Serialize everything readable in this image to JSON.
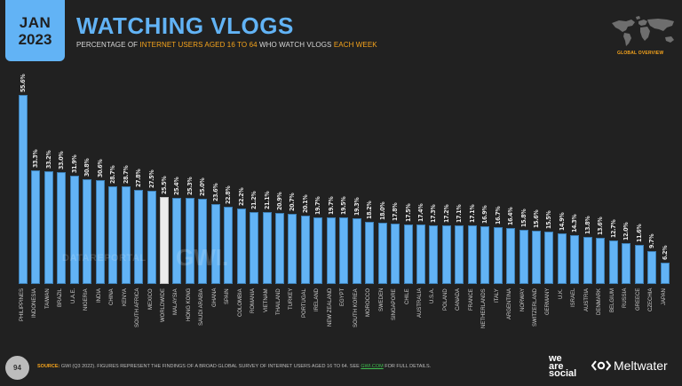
{
  "header": {
    "month": "JAN",
    "year": "2023",
    "title": "WATCHING VLOGS",
    "subtitle_parts": [
      "PERCENTAGE OF ",
      "INTERNET USERS AGED 16 TO 64",
      " WHO WATCH VLOGS ",
      "EACH WEEK"
    ],
    "section_label": "GLOBAL OVERVIEW"
  },
  "colors": {
    "background": "#212121",
    "bar": "#62b3f5",
    "bar_worldwide": "#ececec",
    "accent": "#f6a41c",
    "title": "#62b3f5"
  },
  "watermarks": {
    "datareportal": "DATAREPORTAL",
    "gwi": "GWI."
  },
  "footer": {
    "page_number": "94",
    "source_label": "SOURCE:",
    "source_text": " GWI (Q3 2022). FIGURES REPRESENT THE FINDINGS OF A BROAD GLOBAL SURVEY OF INTERNET USERS AGED 16 TO 64. SEE ",
    "source_link": "GWI.COM",
    "source_tail": " FOR FULL DETAILS.",
    "logo_was": [
      "we",
      "are",
      "social"
    ],
    "logo_meltwater": "Meltwater"
  },
  "chart_data": {
    "type": "bar",
    "title": "WATCHING VLOGS",
    "subtitle": "PERCENTAGE OF INTERNET USERS AGED 16 TO 64 WHO WATCH VLOGS EACH WEEK",
    "xlabel": "",
    "ylabel": "",
    "grid": false,
    "legend": false,
    "ylim": [
      0,
      56
    ],
    "highlight": "WORLDWIDE",
    "categories": [
      "PHILIPPINES",
      "INDONESIA",
      "TAIWAN",
      "BRAZIL",
      "U.A.E.",
      "NIGERIA",
      "INDIA",
      "CHINA",
      "KENYA",
      "SOUTH AFRICA",
      "MEXICO",
      "WORLDWIDE",
      "MALAYSIA",
      "HONG KONG",
      "SAUDI ARABIA",
      "GHANA",
      "SPAIN",
      "COLOMBIA",
      "ROMANIA",
      "VIETNAM",
      "THAILAND",
      "TURKEY",
      "PORTUGAL",
      "IRELAND",
      "NEW ZEALAND",
      "EGYPT",
      "SOUTH KOREA",
      "MOROCCO",
      "SWEDEN",
      "SINGAPORE",
      "CHILE",
      "AUSTRALIA",
      "U.S.A.",
      "POLAND",
      "CANADA",
      "FRANCE",
      "NETHERLANDS",
      "ITALY",
      "ARGENTINA",
      "NORWAY",
      "SWITZERLAND",
      "GERMANY",
      "U.K.",
      "ISRAEL",
      "AUSTRIA",
      "DENMARK",
      "BELGIUM",
      "RUSSIA",
      "GREECE",
      "CZECHIA",
      "JAPAN"
    ],
    "values": [
      55.6,
      33.3,
      33.2,
      33.0,
      31.9,
      30.8,
      30.6,
      28.7,
      28.7,
      27.8,
      27.5,
      25.5,
      25.4,
      25.3,
      25.0,
      23.6,
      22.8,
      22.2,
      21.2,
      21.1,
      20.9,
      20.7,
      20.1,
      19.7,
      19.7,
      19.5,
      19.3,
      18.2,
      18.0,
      17.8,
      17.5,
      17.4,
      17.3,
      17.2,
      17.1,
      17.1,
      16.9,
      16.7,
      16.4,
      15.8,
      15.6,
      15.5,
      14.9,
      14.3,
      13.8,
      13.6,
      12.7,
      12.0,
      11.6,
      9.7,
      6.2
    ],
    "value_labels": [
      "55.6%",
      "33.3%",
      "33.2%",
      "33.0%",
      "31.9%",
      "30.8%",
      "30.6%",
      "28.7%",
      "28.7%",
      "27.8%",
      "27.5%",
      "25.5%",
      "25.4%",
      "25.3%",
      "25.0%",
      "23.6%",
      "22.8%",
      "22.2%",
      "21.2%",
      "21.1%",
      "20.9%",
      "20.7%",
      "20.1%",
      "19.7%",
      "19.7%",
      "19.5%",
      "19.3%",
      "18.2%",
      "18.0%",
      "17.8%",
      "17.5%",
      "17.4%",
      "17.3%",
      "17.2%",
      "17.1%",
      "17.1%",
      "16.9%",
      "16.7%",
      "16.4%",
      "15.8%",
      "15.6%",
      "15.5%",
      "14.9%",
      "14.3%",
      "13.8%",
      "13.6%",
      "12.7%",
      "12.0%",
      "11.6%",
      "9.7%",
      "6.2%"
    ]
  }
}
